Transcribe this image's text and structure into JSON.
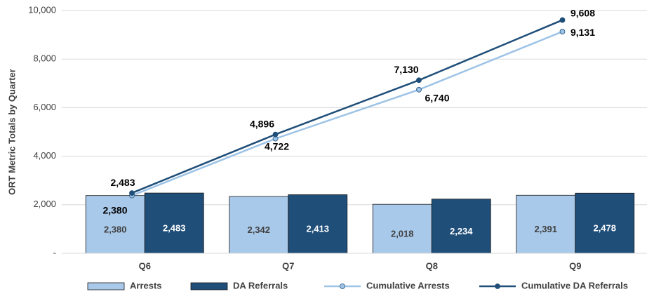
{
  "chart_data": {
    "type": "combo",
    "y_label": "ORT Metric Totals by Quarter",
    "categories": [
      "Q6",
      "Q7",
      "Q8",
      "Q9"
    ],
    "series": [
      {
        "name": "Arrests",
        "type": "bar",
        "color": "#a9c9ea",
        "values": [
          2380,
          2342,
          2018,
          2391
        ],
        "value_labels": [
          "2,380",
          "2,342",
          "2,018",
          "2,391"
        ]
      },
      {
        "name": "DA Referrals",
        "type": "bar",
        "color": "#1f4e79",
        "values": [
          2483,
          2413,
          2234,
          2478
        ],
        "value_labels": [
          "2,483",
          "2,413",
          "2,234",
          "2,478"
        ]
      },
      {
        "name": "Cumulative Arrests",
        "type": "line",
        "color": "#9dc3e6",
        "values": [
          2380,
          4722,
          6740,
          9131
        ],
        "value_labels": [
          "2,380",
          "4,722",
          "6,740",
          "9,131"
        ]
      },
      {
        "name": "Cumulative DA Referrals",
        "type": "line",
        "color": "#1f4e79",
        "values": [
          2483,
          4896,
          7130,
          9608
        ],
        "value_labels": [
          "2,483",
          "4,896",
          "7,130",
          "9,608"
        ]
      }
    ],
    "ylim": [
      0,
      10000
    ],
    "yticks": [
      {
        "value": 0,
        "label": "-"
      },
      {
        "value": 2000,
        "label": "2,000"
      },
      {
        "value": 4000,
        "label": "4,000"
      },
      {
        "value": 6000,
        "label": "6,000"
      },
      {
        "value": 8000,
        "label": "8,000"
      },
      {
        "value": 10000,
        "label": "10,000"
      }
    ],
    "grid": true,
    "legend": "bottom"
  }
}
